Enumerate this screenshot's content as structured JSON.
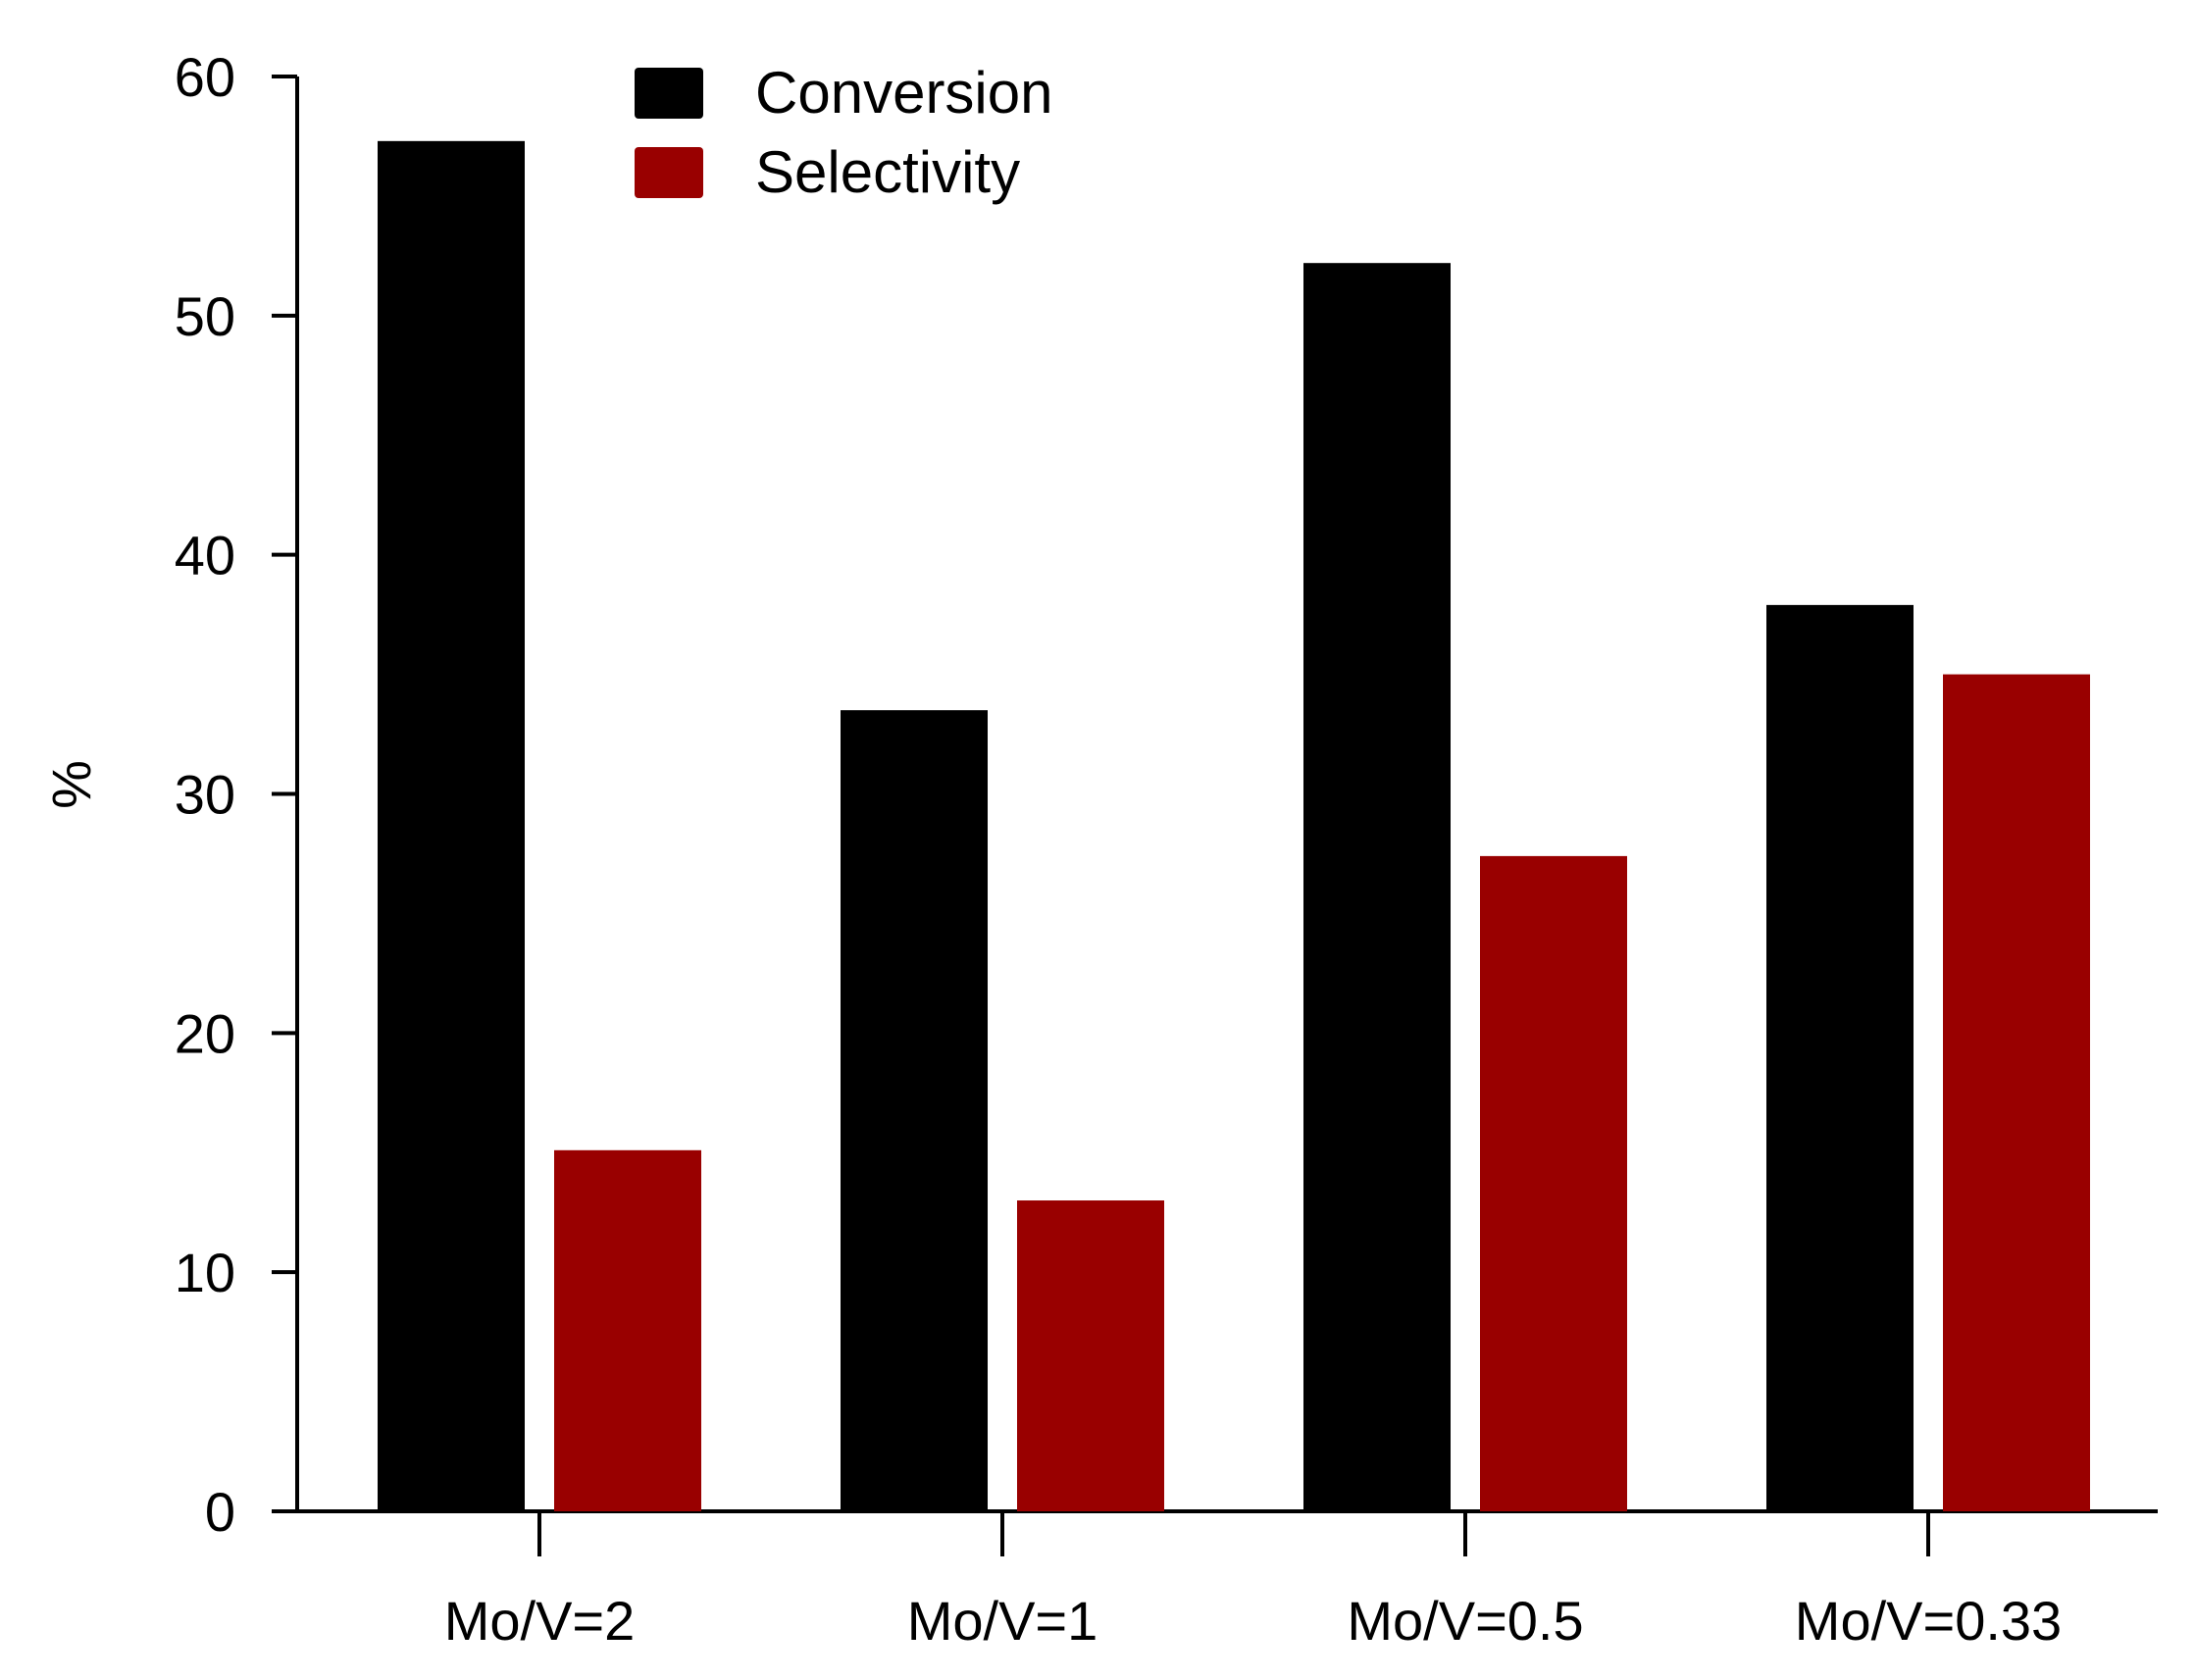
{
  "chart_data": {
    "type": "bar",
    "title": "",
    "xlabel": "",
    "ylabel": "%",
    "ylim": [
      0,
      60
    ],
    "yticks": [
      0,
      10,
      20,
      30,
      40,
      50,
      60
    ],
    "categories": [
      "Mo/V=2",
      "Mo/V=1",
      "Mo/V=0.5",
      "Mo/V=0.33"
    ],
    "series": [
      {
        "name": "Conversion",
        "color": "#000000",
        "values": [
          57.3,
          33.5,
          52.2,
          37.9
        ]
      },
      {
        "name": "Selectivity",
        "color": "#990000",
        "values": [
          15.1,
          13.0,
          27.4,
          35.0
        ]
      }
    ],
    "grid": false,
    "legend_position": "top-center"
  }
}
